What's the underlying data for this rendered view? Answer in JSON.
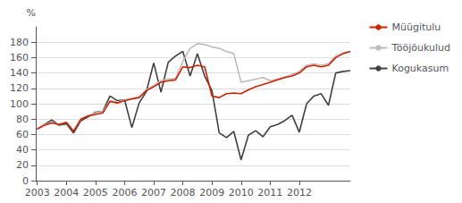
{
  "chart_data": {
    "type": "line",
    "ylabel": "%",
    "x": [
      2003,
      2003.25,
      2003.5,
      2003.75,
      2004,
      2004.25,
      2004.5,
      2004.75,
      2005,
      2005.25,
      2005.5,
      2005.75,
      2006,
      2006.25,
      2006.5,
      2006.75,
      2007,
      2007.25,
      2007.5,
      2007.75,
      2008,
      2008.25,
      2008.5,
      2008.75,
      2009,
      2009.25,
      2009.5,
      2009.75,
      2010,
      2010.25,
      2010.5,
      2010.75,
      2011,
      2011.25,
      2011.5,
      2011.75,
      2012,
      2012.25,
      2012.5,
      2012.75,
      2013,
      2013.25,
      2013.5,
      2013.75
    ],
    "series": [
      {
        "name": "Müügitulu",
        "color": "#cc2200",
        "values": [
          67,
          72,
          75,
          73,
          76,
          64,
          80,
          84,
          86,
          88,
          103,
          101,
          104,
          106,
          108,
          117,
          122,
          128,
          130,
          131,
          148,
          147,
          150,
          148,
          110,
          108,
          113,
          114,
          113,
          118,
          122,
          125,
          128,
          131,
          134,
          136,
          140,
          148,
          150,
          148,
          150,
          160,
          165,
          168
        ]
      },
      {
        "name": "Tööjõukulud",
        "color": "#bbbbbb",
        "values": [
          68,
          73,
          76,
          73,
          76,
          65,
          80,
          85,
          88,
          90,
          104,
          102,
          105,
          107,
          109,
          118,
          124,
          130,
          132,
          133,
          155,
          172,
          178,
          177,
          174,
          172,
          168,
          165,
          128,
          130,
          132,
          134,
          130,
          132,
          135,
          138,
          142,
          150,
          152,
          150,
          152,
          162,
          166,
          168
        ]
      },
      {
        "name": "Kogukasum",
        "color": "#404040",
        "values": [
          67,
          73,
          79,
          72,
          74,
          62,
          78,
          83,
          89,
          90,
          110,
          104,
          105,
          69,
          101,
          116,
          153,
          115,
          154,
          162,
          168,
          136,
          165,
          136,
          117,
          62,
          56,
          64,
          27,
          59,
          65,
          57,
          70,
          73,
          78,
          85,
          63,
          100,
          110,
          113,
          98,
          140,
          142,
          143
        ]
      }
    ],
    "xlim": [
      2002.95,
      2013.75
    ],
    "xticks": [
      2003,
      2004,
      2005,
      2006,
      2007,
      2008,
      2009,
      2010,
      2011,
      2012
    ],
    "ylim": [
      0,
      200
    ],
    "yticks": [
      0,
      20,
      40,
      60,
      80,
      100,
      120,
      140,
      160,
      180
    ],
    "grid": true,
    "legend": "right"
  }
}
